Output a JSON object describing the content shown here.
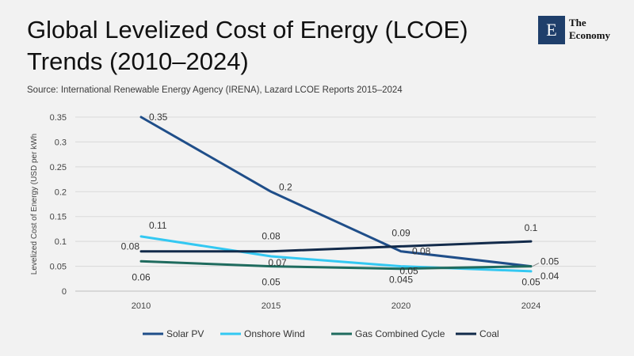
{
  "header": {
    "title": "Global Levelized Cost of Energy (LCOE) Trends (2010–2024)",
    "source": "Source: International Renewable Energy Agency (IRENA), Lazard LCOE Reports 2015–2024"
  },
  "logo": {
    "mark": "E",
    "line1": "The",
    "line2": "Economy",
    "color": "#1f3f6b"
  },
  "chart_data": {
    "type": "line",
    "title": "Global Levelized Cost of Energy (LCOE) Trends (2010–2024)",
    "xlabel": "",
    "ylabel": "Levelized Cost of Energy (USD per kWh",
    "categories": [
      "2010",
      "2015",
      "2020",
      "2024"
    ],
    "ylim": [
      0,
      0.35
    ],
    "yticks": [
      0,
      0.05,
      0.1,
      0.15,
      0.2,
      0.25,
      0.3,
      0.35
    ],
    "ytick_labels": [
      "0",
      "0.05",
      "0.1",
      "0.15",
      "0.2",
      "0.25",
      "0.3",
      "0.35"
    ],
    "grid": true,
    "legend_position": "bottom",
    "series": [
      {
        "name": "Solar PV",
        "color": "#1f4e89",
        "values": [
          0.35,
          0.2,
          0.08,
          0.05
        ],
        "labels": [
          "0.35",
          "0.2",
          "0.08",
          "0.05"
        ]
      },
      {
        "name": "Onshore Wind",
        "color": "#33c8f2",
        "values": [
          0.11,
          0.07,
          0.05,
          0.04
        ],
        "labels": [
          "0.11",
          "0.07",
          "0.05",
          "0.04"
        ]
      },
      {
        "name": "Gas Combined Cycle",
        "color": "#1f6b5e",
        "values": [
          0.06,
          0.05,
          0.045,
          0.05
        ],
        "labels": [
          "0.06",
          "0.05",
          "0.045",
          "0.05"
        ]
      },
      {
        "name": "Coal",
        "color": "#122a4a",
        "values": [
          0.08,
          0.08,
          0.09,
          0.1
        ],
        "labels": [
          "0.08",
          "0.08",
          "0.09",
          "0.1"
        ]
      }
    ]
  }
}
